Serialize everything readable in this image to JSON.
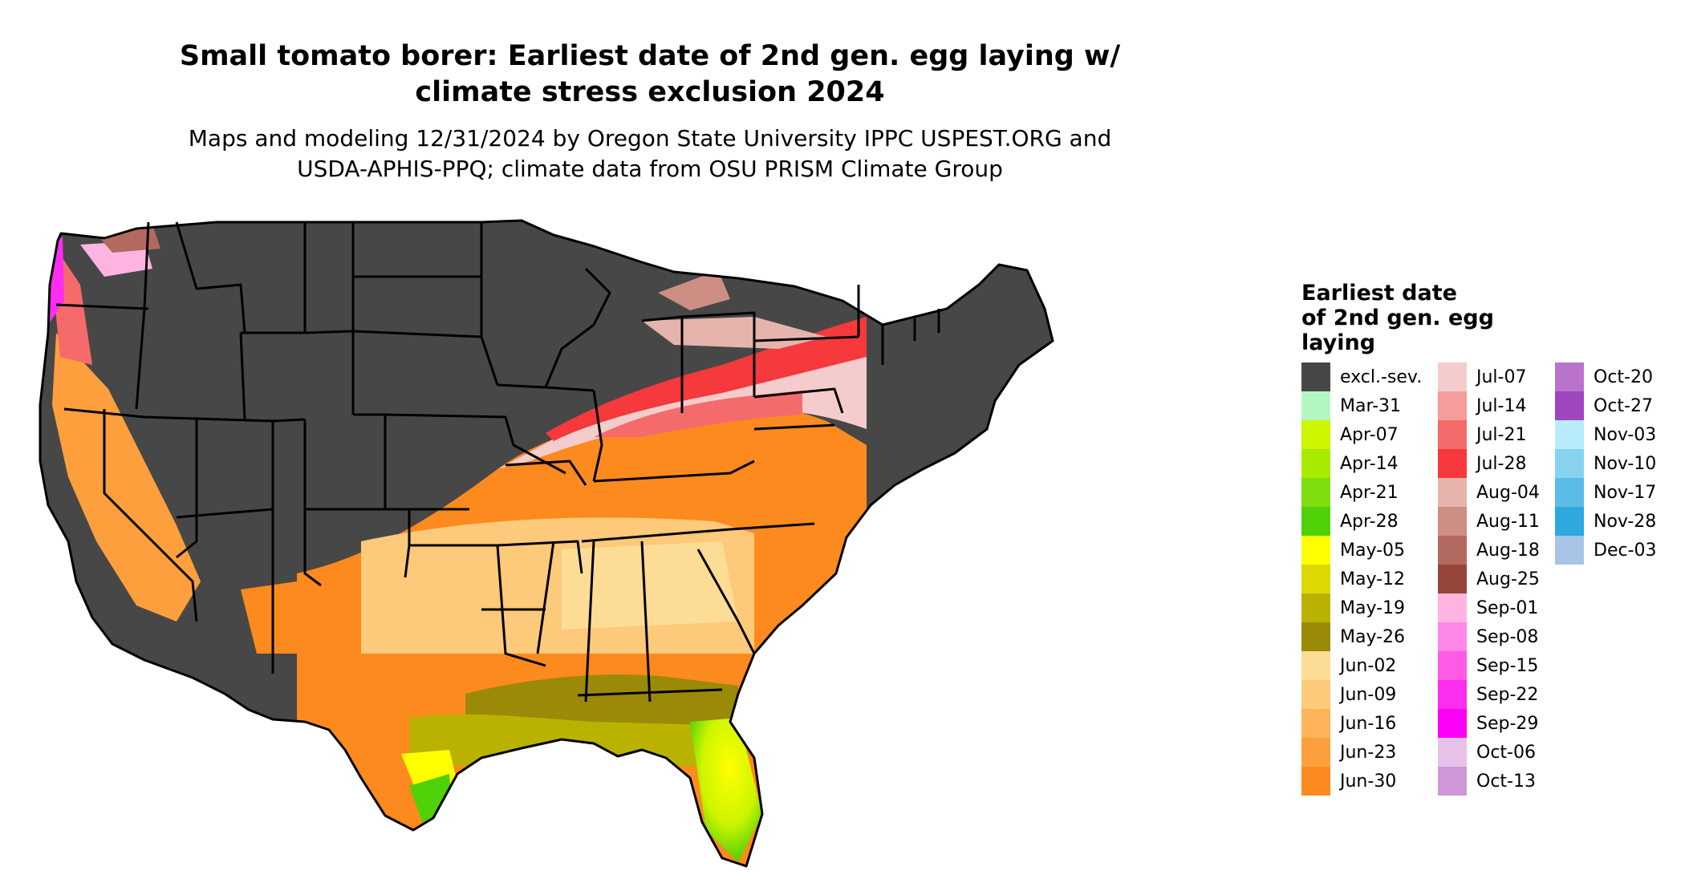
{
  "title": "Small tomato borer: Earliest date of 2nd gen. egg laying w/\nclimate stress exclusion 2024",
  "subtitle": "Maps and modeling 12/31/2024 by Oregon State University IPPC USPEST.ORG and\nUSDA-APHIS-PPQ; climate data from OSU PRISM Climate Group",
  "legend": {
    "title": "Earliest date\nof 2nd gen. egg\nlaying",
    "columns": [
      [
        {
          "label": "excl.-sev.",
          "color": "#474747"
        },
        {
          "label": "Mar-31",
          "color": "#b3f7c0"
        },
        {
          "label": "Apr-07",
          "color": "#ccf500"
        },
        {
          "label": "Apr-14",
          "color": "#a8ea00"
        },
        {
          "label": "Apr-21",
          "color": "#7ddd0f"
        },
        {
          "label": "Apr-28",
          "color": "#4fd10a"
        },
        {
          "label": "May-05",
          "color": "#ffff00"
        },
        {
          "label": "May-12",
          "color": "#dcd800"
        },
        {
          "label": "May-19",
          "color": "#bab200"
        },
        {
          "label": "May-26",
          "color": "#9a8a08"
        },
        {
          "label": "Jun-02",
          "color": "#fddc96"
        },
        {
          "label": "Jun-09",
          "color": "#fdc97a"
        },
        {
          "label": "Jun-16",
          "color": "#fdb45a"
        },
        {
          "label": "Jun-23",
          "color": "#fd9f3c"
        },
        {
          "label": "Jun-30",
          "color": "#fd8a1e"
        }
      ],
      [
        {
          "label": "Jul-07",
          "color": "#f5cccc"
        },
        {
          "label": "Jul-14",
          "color": "#f59c9c"
        },
        {
          "label": "Jul-21",
          "color": "#f56b6b"
        },
        {
          "label": "Jul-28",
          "color": "#f5393c"
        },
        {
          "label": "Aug-04",
          "color": "#e5b5ad"
        },
        {
          "label": "Aug-11",
          "color": "#cd8f84"
        },
        {
          "label": "Aug-18",
          "color": "#b36a5e"
        },
        {
          "label": "Aug-25",
          "color": "#96453a"
        },
        {
          "label": "Sep-01",
          "color": "#fdb4e0"
        },
        {
          "label": "Sep-08",
          "color": "#fd87e7"
        },
        {
          "label": "Sep-15",
          "color": "#fd5ae6"
        },
        {
          "label": "Sep-22",
          "color": "#fd2df0"
        },
        {
          "label": "Sep-29",
          "color": "#fd00f6"
        },
        {
          "label": "Oct-06",
          "color": "#e6c2e8"
        },
        {
          "label": "Oct-13",
          "color": "#cf96d8"
        }
      ],
      [
        {
          "label": "Oct-20",
          "color": "#b874cc"
        },
        {
          "label": "Oct-27",
          "color": "#9d46bd"
        },
        {
          "label": "Nov-03",
          "color": "#b7ecfc"
        },
        {
          "label": "Nov-10",
          "color": "#86d3f0"
        },
        {
          "label": "Nov-17",
          "color": "#5bbde7"
        },
        {
          "label": "Nov-28",
          "color": "#2ea8df"
        },
        {
          "label": "Dec-03",
          "color": "#a8c4e4"
        }
      ]
    ]
  }
}
